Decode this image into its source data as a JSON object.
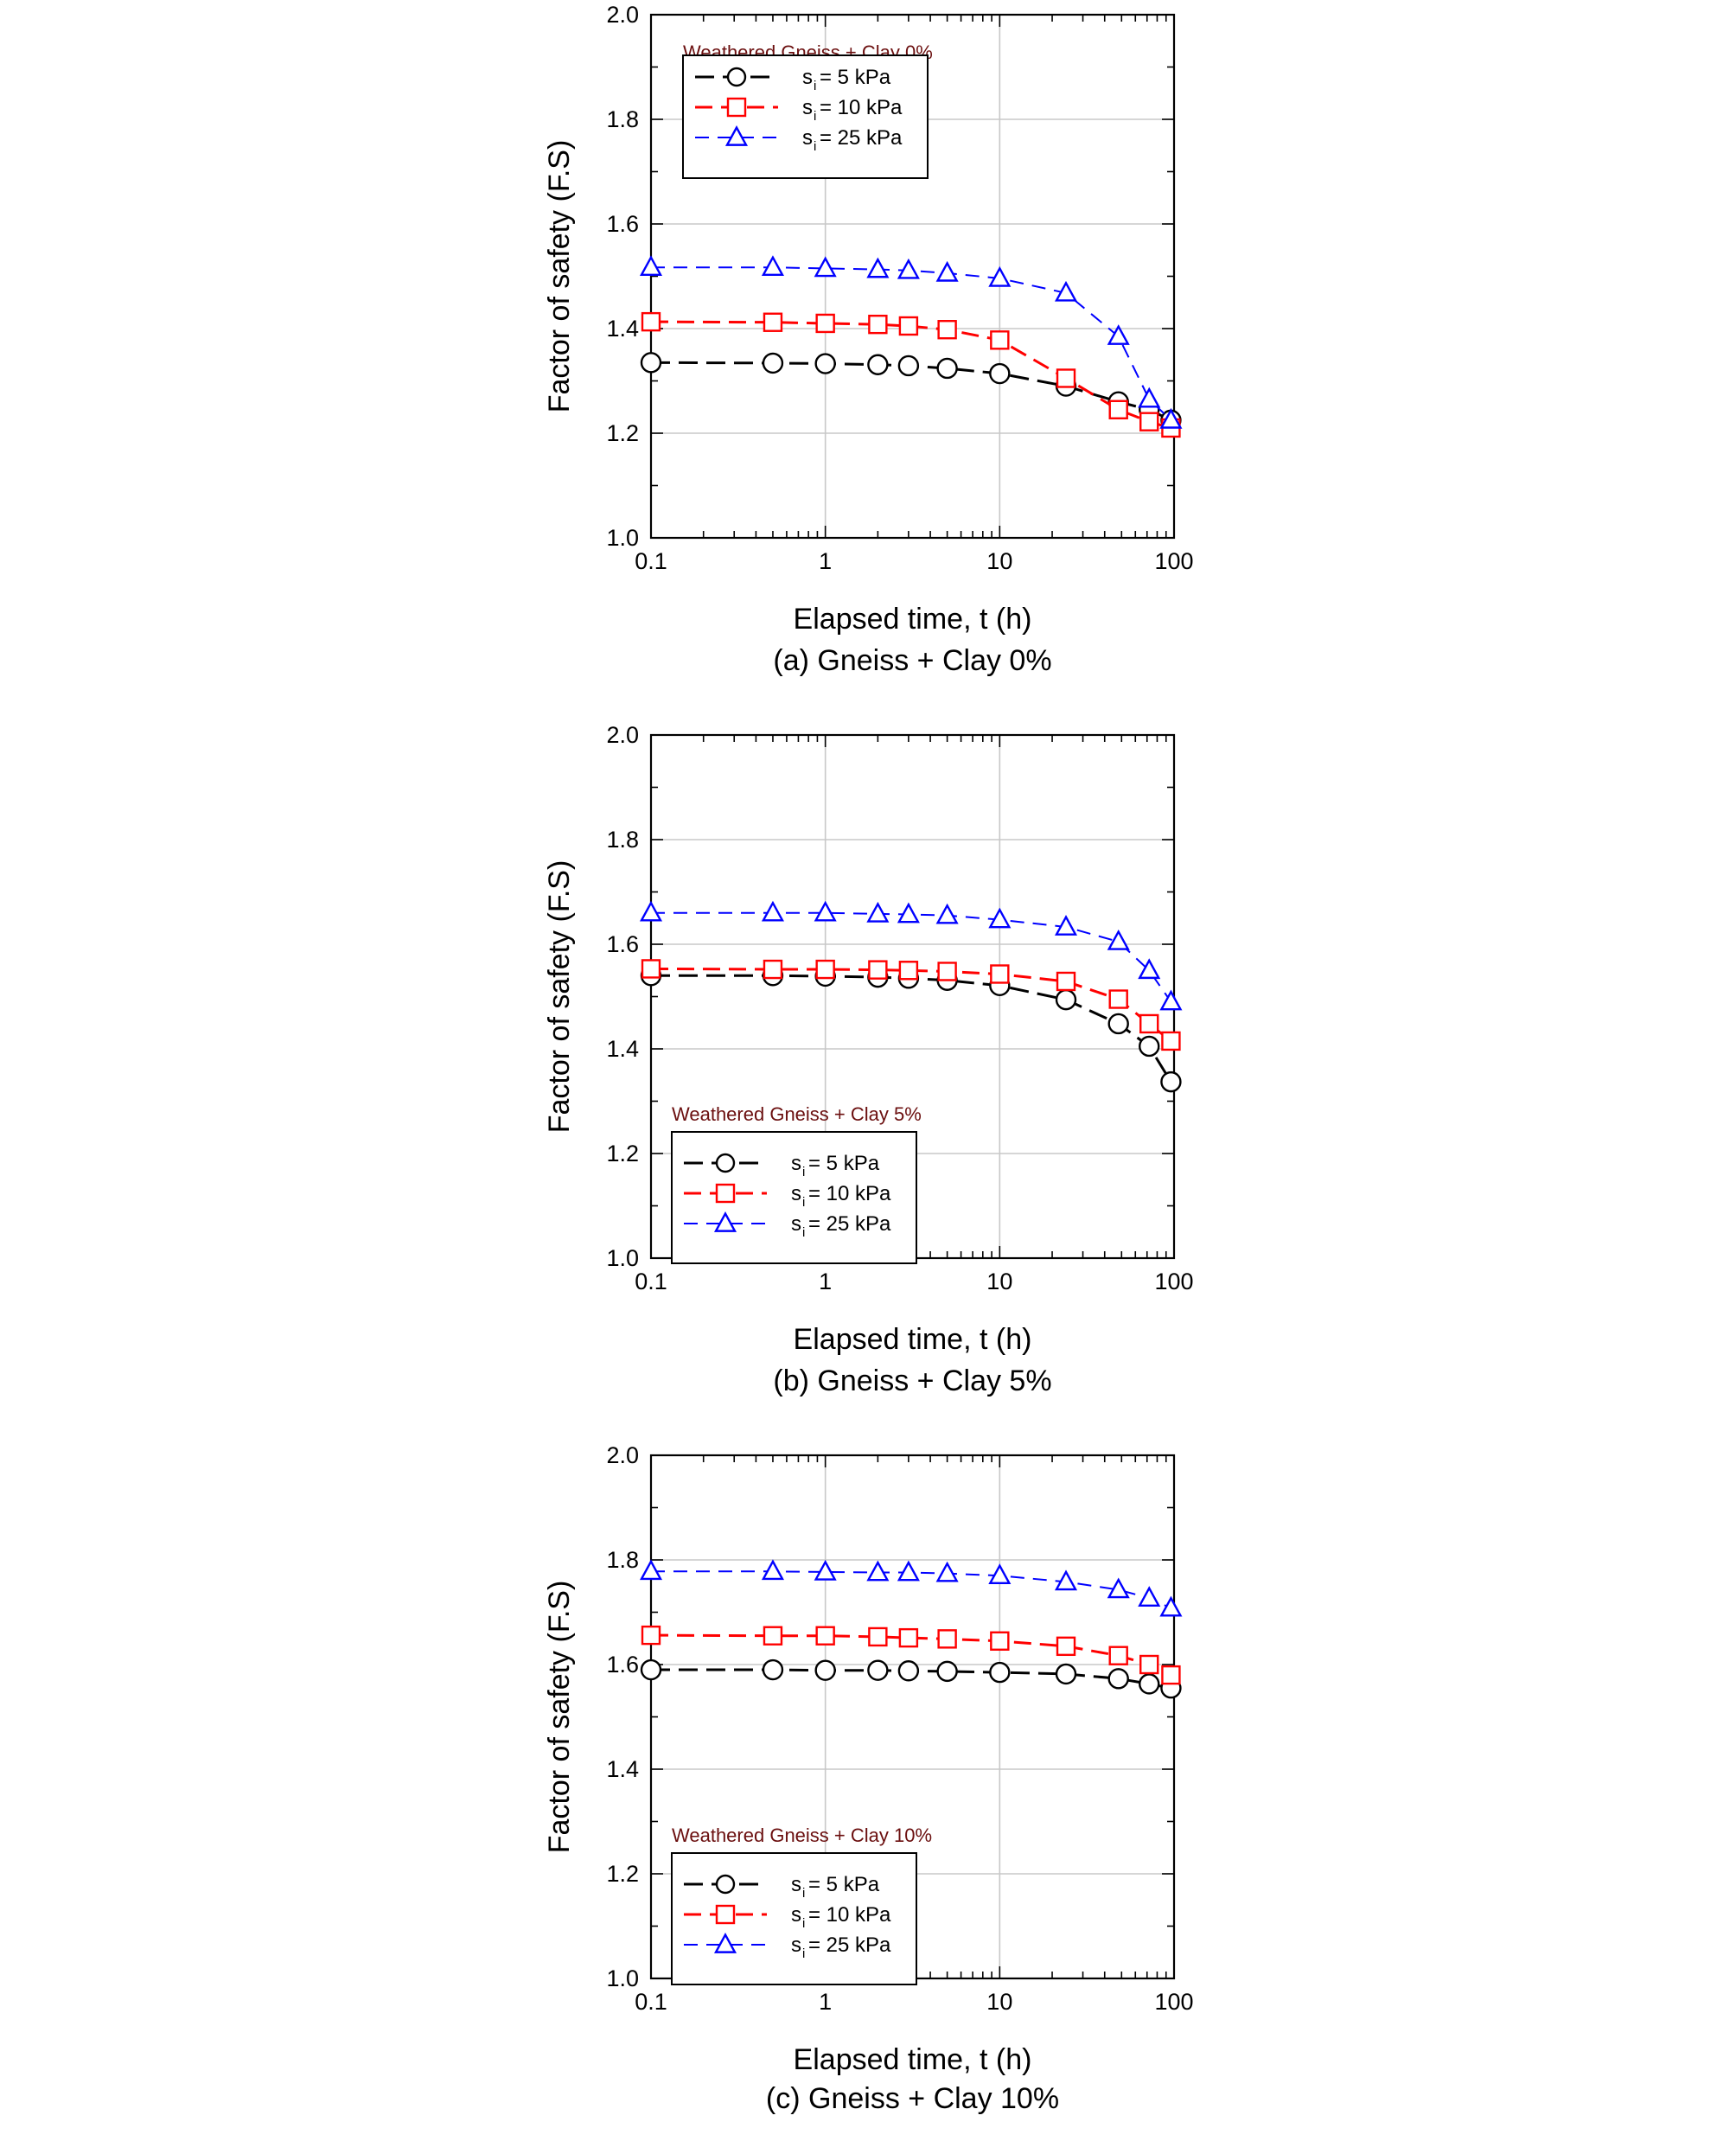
{
  "colors": {
    "s5": "#000000",
    "s10": "#ff0000",
    "s25": "#0000ff",
    "legend_title": "#6b0f0f",
    "grid": "#c8c8c8"
  },
  "chart_data": [
    {
      "id": "a",
      "type": "line",
      "title": "Weathered Gneiss + Clay 0%",
      "caption": "(a) Gneiss + Clay 0%",
      "xlabel": "Elapsed time, t (h)",
      "ylabel": "Factor of safety (F.S)",
      "xscale": "log",
      "xlim": [
        0.1,
        100
      ],
      "ylim": [
        1.0,
        2.0
      ],
      "xticks": [
        "0.1",
        "1",
        "10",
        "100"
      ],
      "yticks": [
        "1.0",
        "1.2",
        "1.4",
        "1.6",
        "1.8",
        "2.0"
      ],
      "legend_position": "top-left",
      "x": [
        0.1,
        0.5,
        1,
        2,
        3,
        5,
        10,
        24,
        48,
        72,
        96
      ],
      "series": [
        {
          "name": "s_i = 5 kPa",
          "sub": "i",
          "label_rest": " = 5 kPa",
          "marker": "circle",
          "color": "#000000",
          "values": [
            1.335,
            1.334,
            1.333,
            1.331,
            1.329,
            1.324,
            1.314,
            1.29,
            1.26,
            1.245,
            1.225
          ]
        },
        {
          "name": "s_i = 10 kPa",
          "sub": "i",
          "label_rest": " = 10 kPa",
          "marker": "square",
          "color": "#ff0000",
          "values": [
            1.413,
            1.412,
            1.41,
            1.408,
            1.405,
            1.398,
            1.378,
            1.305,
            1.245,
            1.222,
            1.21
          ]
        },
        {
          "name": "s_i = 25 kPa",
          "sub": "i",
          "label_rest": " = 25 kPa",
          "marker": "triangle",
          "color": "#0000ff",
          "values": [
            1.517,
            1.517,
            1.515,
            1.513,
            1.511,
            1.506,
            1.496,
            1.468,
            1.385,
            1.265,
            1.225
          ]
        }
      ]
    },
    {
      "id": "b",
      "type": "line",
      "title": "Weathered Gneiss + Clay 5%",
      "caption": "(b) Gneiss + Clay 5%",
      "xlabel": "Elapsed time, t (h)",
      "ylabel": "Factor of safety (F.S)",
      "xscale": "log",
      "xlim": [
        0.1,
        100
      ],
      "ylim": [
        1.0,
        2.0
      ],
      "xticks": [
        "0.1",
        "1",
        "10",
        "100"
      ],
      "yticks": [
        "1.0",
        "1.2",
        "1.4",
        "1.6",
        "1.8",
        "2.0"
      ],
      "legend_position": "bottom-left",
      "x": [
        0.1,
        0.5,
        1,
        2,
        3,
        5,
        10,
        24,
        48,
        72,
        96
      ],
      "series": [
        {
          "name": "s_i = 5 kPa",
          "sub": "i",
          "label_rest": " = 5 kPa",
          "marker": "circle",
          "color": "#000000",
          "values": [
            1.54,
            1.54,
            1.539,
            1.537,
            1.535,
            1.531,
            1.521,
            1.494,
            1.448,
            1.405,
            1.337
          ]
        },
        {
          "name": "s_i = 10 kPa",
          "sub": "i",
          "label_rest": " = 10 kPa",
          "marker": "square",
          "color": "#ff0000",
          "values": [
            1.553,
            1.552,
            1.552,
            1.551,
            1.55,
            1.548,
            1.543,
            1.529,
            1.495,
            1.448,
            1.415
          ]
        },
        {
          "name": "s_i = 25 kPa",
          "sub": "i",
          "label_rest": " = 25 kPa",
          "marker": "triangle",
          "color": "#0000ff",
          "values": [
            1.66,
            1.66,
            1.66,
            1.658,
            1.657,
            1.655,
            1.647,
            1.633,
            1.605,
            1.55,
            1.49
          ]
        }
      ]
    },
    {
      "id": "c",
      "type": "line",
      "title": "Weathered Gneiss + Clay 10%",
      "caption": "(c) Gneiss + Clay 10%",
      "xlabel": "Elapsed time, t (h)",
      "ylabel": "Factor of safety (F.S)",
      "xscale": "log",
      "xlim": [
        0.1,
        100
      ],
      "ylim": [
        1.0,
        2.0
      ],
      "xticks": [
        "0.1",
        "1",
        "10",
        "100"
      ],
      "yticks": [
        "1.0",
        "1.2",
        "1.4",
        "1.6",
        "1.8",
        "2.0"
      ],
      "legend_position": "bottom-left",
      "x": [
        0.1,
        0.5,
        1,
        2,
        3,
        5,
        10,
        24,
        48,
        72,
        96
      ],
      "series": [
        {
          "name": "s_i = 5 kPa",
          "sub": "i",
          "label_rest": " = 5 kPa",
          "marker": "circle",
          "color": "#000000",
          "values": [
            1.59,
            1.59,
            1.589,
            1.589,
            1.588,
            1.587,
            1.585,
            1.582,
            1.573,
            1.563,
            1.555
          ]
        },
        {
          "name": "s_i = 10 kPa",
          "sub": "i",
          "label_rest": " = 10 kPa",
          "marker": "square",
          "color": "#ff0000",
          "values": [
            1.656,
            1.655,
            1.655,
            1.653,
            1.651,
            1.649,
            1.645,
            1.635,
            1.617,
            1.6,
            1.58
          ]
        },
        {
          "name": "s_i = 25 kPa",
          "sub": "i",
          "label_rest": " = 25 kPa",
          "marker": "triangle",
          "color": "#0000ff",
          "values": [
            1.778,
            1.778,
            1.777,
            1.776,
            1.776,
            1.774,
            1.77,
            1.758,
            1.743,
            1.727,
            1.708
          ]
        }
      ]
    }
  ]
}
